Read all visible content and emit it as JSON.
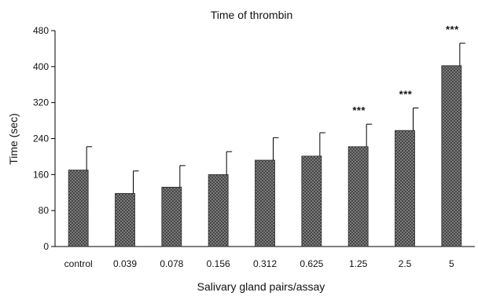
{
  "chart_data": {
    "type": "bar",
    "title": "Time of thrombin",
    "xlabel": "Salivary gland pairs/assay",
    "ylabel": "Time (sec)",
    "categories": [
      "control",
      "0.039",
      "0.078",
      "0.156",
      "0.312",
      "0.625",
      "1.25",
      "2.5",
      "5"
    ],
    "values": [
      170,
      118,
      132,
      160,
      192,
      201,
      222,
      258,
      402
    ],
    "errors": [
      52,
      50,
      48,
      51,
      50,
      52,
      50,
      50,
      50
    ],
    "significance": [
      "",
      "",
      "",
      "",
      "",
      "",
      "***",
      "***",
      "***"
    ],
    "ylim": [
      0,
      480
    ],
    "yticks": [
      0,
      80,
      160,
      240,
      320,
      400,
      480
    ],
    "grid": false,
    "bar_pattern": "crosshatch",
    "bar_color": "#6a6a6a"
  }
}
